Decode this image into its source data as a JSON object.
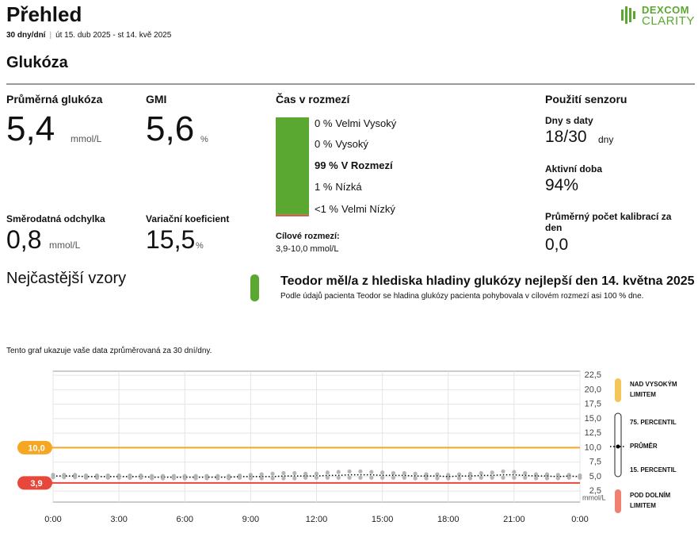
{
  "header": {
    "title": "Přehled",
    "period": "30 dny/dní",
    "dates": "út 15. dub 2025 - st 14. kvě 2025",
    "logo_top": "DEXCOM",
    "logo_bottom": "CLARITY"
  },
  "section_title": "Glukóza",
  "stats": {
    "mean": {
      "label": "Průměrná glukóza",
      "value": "5,4",
      "unit": "mmol/L"
    },
    "gmi": {
      "label": "GMI",
      "value": "5,6",
      "unit": "%"
    },
    "sd": {
      "label": "Směrodatná odchylka",
      "value": "0,8",
      "unit": "mmol/L"
    },
    "cv": {
      "label": "Variační koeficient",
      "value": "15,5",
      "unit": "%"
    }
  },
  "time_in_range": {
    "title": "Čas v rozmezí",
    "items": [
      {
        "name": "Velmi Vysoký",
        "value": 0,
        "value_label": "0 %",
        "color": "#f08a24"
      },
      {
        "name": "Vysoký",
        "value": 0,
        "value_label": "0 %",
        "color": "#f5c55a"
      },
      {
        "name": "V Rozmezí",
        "value": 99,
        "value_label": "99 %",
        "color": "#5aa832"
      },
      {
        "name": "Nízká",
        "value": 1,
        "value_label": "1 %",
        "color": "#e8483b"
      },
      {
        "name": "Velmi Nízký",
        "value": 0.5,
        "value_label": "<1 %",
        "color": "#b8282a"
      }
    ],
    "target_label": "Cílové rozmezí:",
    "target_value": "3,9-10,0 mmol/L"
  },
  "sensor": {
    "title": "Použití senzoru",
    "days": {
      "label": "Dny s daty",
      "value": "18/30",
      "unit": "dny"
    },
    "active": {
      "label": "Aktivní doba",
      "value": "94%"
    },
    "calibrations": {
      "label": "Průměrný počet kalibrací za den",
      "value": "0,0"
    }
  },
  "patterns": {
    "title": "Nejčastější vzory",
    "heading": "Teodor měl/a z hlediska hladiny glukózy nejlepší den 14. května 2025",
    "text": "Podle údajů pacienta Teodor se hladina glukózy pacienta pohybovala v cílovém rozmezí asi 100 % dne."
  },
  "chart_caption": "Tento graf ukazuje vaše data zprůměrovaná za 30 dní/dny.",
  "chart_data": {
    "type": "line",
    "x": [
      0,
      0.5,
      1,
      1.5,
      2,
      2.5,
      3,
      3.5,
      4,
      4.5,
      5,
      5.5,
      6,
      6.5,
      7,
      7.5,
      8,
      8.5,
      9,
      9.5,
      10,
      10.5,
      11,
      11.5,
      12,
      12.5,
      13,
      13.5,
      14,
      14.5,
      15,
      15.5,
      16,
      16.5,
      17,
      17.5,
      18,
      18.5,
      19,
      19.5,
      20,
      20.5,
      21,
      21.5,
      22,
      22.5,
      23,
      23.5,
      24
    ],
    "xlim": [
      0,
      24
    ],
    "xticks": [
      {
        "value": 0,
        "label": "0:00"
      },
      {
        "value": 3,
        "label": "3:00"
      },
      {
        "value": 6,
        "label": "6:00"
      },
      {
        "value": 9,
        "label": "9:00"
      },
      {
        "value": 12,
        "label": "12:00"
      },
      {
        "value": 15,
        "label": "15:00"
      },
      {
        "value": 18,
        "label": "18:00"
      },
      {
        "value": 21,
        "label": "21:00"
      },
      {
        "value": 24,
        "label": "0:00"
      }
    ],
    "ylim": [
      0.6,
      23.2
    ],
    "yticks": [
      {
        "value": 2.5,
        "label": "2,5"
      },
      {
        "value": 5,
        "label": "5,0"
      },
      {
        "value": 7.5,
        "label": "7,5"
      },
      {
        "value": 10,
        "label": "10,0"
      },
      {
        "value": 12.5,
        "label": "12,5"
      },
      {
        "value": 15,
        "label": "15,0"
      },
      {
        "value": 17.5,
        "label": "17,5"
      },
      {
        "value": 20,
        "label": "20,0"
      },
      {
        "value": 22.5,
        "label": "22,5"
      }
    ],
    "y_unit": "mmol/L",
    "grid": true,
    "thresholds": [
      {
        "value": 10,
        "label": "10,0",
        "color": "#f5a623"
      },
      {
        "value": 3.9,
        "label": "3,9",
        "color": "#e8483b"
      }
    ],
    "series": [
      {
        "name": "75. PERCENTIL",
        "color": "#b5b5b5",
        "values": [
          5.3,
          5.3,
          5.3,
          5.2,
          5.2,
          5.2,
          5.2,
          5.2,
          5.2,
          5.1,
          5.1,
          5.1,
          5.1,
          5.1,
          5.1,
          5.1,
          5.1,
          5.2,
          5.3,
          5.4,
          5.5,
          5.6,
          5.6,
          5.5,
          5.5,
          5.7,
          5.8,
          5.9,
          5.9,
          5.8,
          5.7,
          5.6,
          5.6,
          5.5,
          5.4,
          5.4,
          5.3,
          5.4,
          5.5,
          5.6,
          5.7,
          5.9,
          5.8,
          5.6,
          5.4,
          5.4,
          5.3,
          5.3,
          5.2
        ]
      },
      {
        "name": "PRŮMĚR",
        "color": "#000000",
        "values": [
          5.1,
          5.1,
          5.1,
          5.0,
          5.0,
          5.0,
          5.0,
          5.0,
          5.0,
          4.9,
          4.9,
          4.9,
          4.9,
          4.9,
          4.9,
          4.9,
          4.9,
          5.0,
          5.0,
          5.0,
          5.0,
          5.1,
          5.1,
          5.1,
          5.1,
          5.2,
          5.2,
          5.3,
          5.3,
          5.3,
          5.2,
          5.2,
          5.2,
          5.1,
          5.1,
          5.1,
          5.0,
          5.1,
          5.1,
          5.2,
          5.2,
          5.3,
          5.3,
          5.2,
          5.1,
          5.1,
          5.0,
          5.1,
          5.0
        ]
      },
      {
        "name": "15. PERCENTIL",
        "color": "#b5b5b5",
        "values": [
          4.9,
          4.9,
          4.9,
          4.8,
          4.8,
          4.8,
          4.8,
          4.8,
          4.8,
          4.7,
          4.7,
          4.7,
          4.7,
          4.7,
          4.7,
          4.7,
          4.7,
          4.8,
          4.7,
          4.7,
          4.7,
          4.7,
          4.7,
          4.8,
          4.8,
          4.8,
          4.8,
          4.8,
          4.8,
          4.8,
          4.8,
          4.8,
          4.8,
          4.7,
          4.7,
          4.7,
          4.7,
          4.7,
          4.7,
          4.8,
          4.8,
          4.8,
          4.8,
          4.8,
          4.7,
          4.7,
          4.7,
          4.8,
          4.8
        ]
      }
    ],
    "zones": [
      {
        "label": "NAD VYSOKÝM LIMITEM",
        "color": "#f5c55a"
      },
      {
        "label": "POD DOLNÍM LIMITEM",
        "color": "#f08070"
      }
    ]
  }
}
